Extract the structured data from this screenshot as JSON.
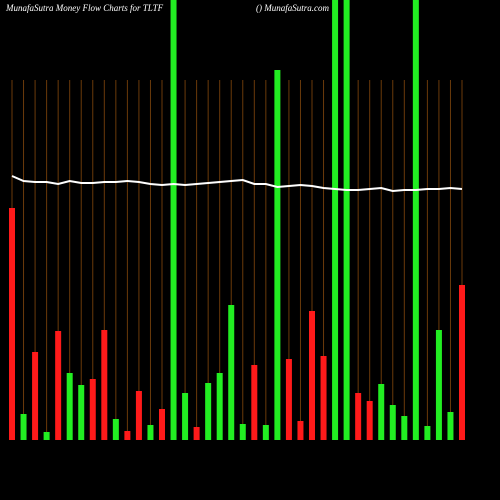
{
  "chart_data": {
    "type": "bar",
    "title": "MunafaSutra  Money Flow  Charts for TLTF",
    "subtitle": "() MunafaSutra.com",
    "ylim": [
      0,
      440
    ],
    "values": [
      232,
      26,
      88,
      8,
      109,
      67,
      55,
      61,
      110,
      21,
      9,
      49,
      15,
      31,
      440,
      47,
      13,
      57,
      67,
      135,
      16,
      75,
      15,
      370,
      81,
      19,
      129,
      84,
      440,
      440,
      47,
      39,
      56,
      35,
      24,
      440,
      14,
      110,
      28,
      155
    ],
    "colors": [
      "#ff1a1a",
      "#22ee22",
      "#ff1a1a",
      "#22ee22",
      "#ff1a1a",
      "#22ee22",
      "#22ee22",
      "#ff1a1a",
      "#ff1a1a",
      "#22ee22",
      "#ff1a1a",
      "#ff1a1a",
      "#22ee22",
      "#ff1a1a",
      "#22ee22",
      "#22ee22",
      "#ff1a1a",
      "#22ee22",
      "#22ee22",
      "#22ee22",
      "#22ee22",
      "#ff1a1a",
      "#22ee22",
      "#22ee22",
      "#ff1a1a",
      "#ff1a1a",
      "#ff1a1a",
      "#ff1a1a",
      "#22ee22",
      "#22ee22",
      "#ff1a1a",
      "#ff1a1a",
      "#22ee22",
      "#22ee22",
      "#22ee22",
      "#22ee22",
      "#22ee22",
      "#22ee22",
      "#22ee22",
      "#ff1a1a"
    ],
    "line": {
      "color": "#ffffff",
      "values": [
        264,
        259,
        258,
        258,
        256,
        259,
        257,
        257,
        258,
        258,
        259,
        258,
        256,
        255,
        256,
        255,
        256,
        257,
        258,
        259,
        260,
        256,
        256,
        253,
        254,
        255,
        254,
        252,
        251,
        250,
        250,
        251,
        252,
        249,
        250,
        250,
        251,
        251,
        252,
        251
      ]
    },
    "grid_color": "#6b3a0a"
  }
}
